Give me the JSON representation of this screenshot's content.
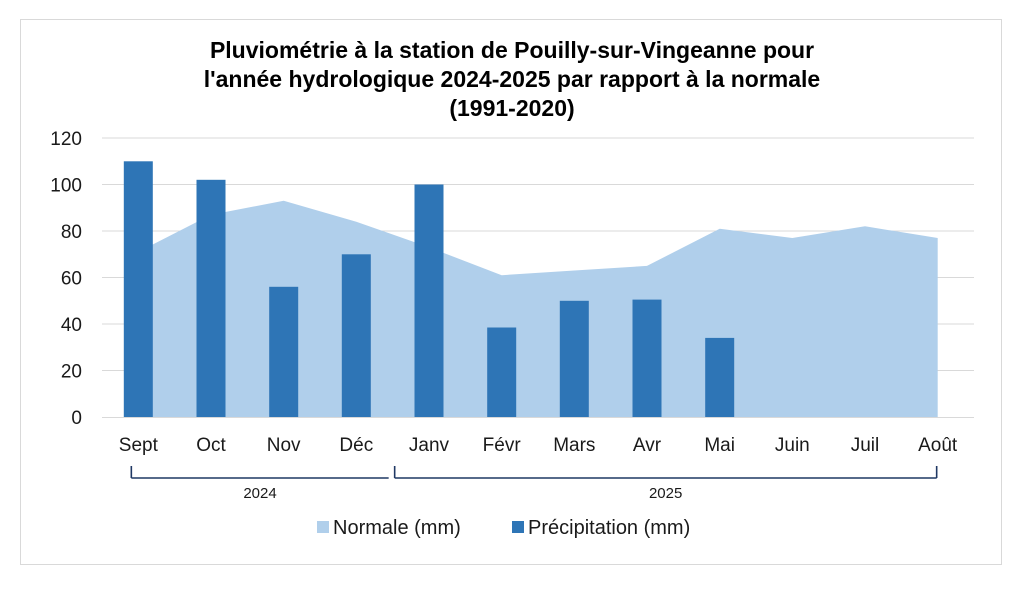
{
  "chart_data": {
    "type": "bar",
    "title_lines": [
      "Pluviométrie à la station de Pouilly-sur-Vingeanne pour",
      "l'année hydrologique 2024-2025 par rapport à la normale",
      "(1991-2020)"
    ],
    "categories": [
      "Sept",
      "Oct",
      "Nov",
      "Déc",
      "Janv",
      "Févr",
      "Mars",
      "Avr",
      "Mai",
      "Juin",
      "Juil",
      "Août"
    ],
    "category_groups": [
      {
        "label": "2024",
        "start": 0,
        "end": 3
      },
      {
        "label": "2025",
        "start": 4,
        "end": 11
      }
    ],
    "series": [
      {
        "name": "Normale (mm)",
        "type": "area",
        "color": "#b0cfeb",
        "values": [
          71,
          87,
          93,
          84,
          73,
          61,
          63,
          65,
          81,
          77,
          82,
          77
        ]
      },
      {
        "name": "Précipitation (mm)",
        "type": "bar",
        "color": "#2e75b6",
        "values": [
          110,
          102,
          56,
          70,
          100,
          38.5,
          50,
          50.5,
          34,
          null,
          null,
          null
        ]
      }
    ],
    "y_ticks": [
      0,
      20,
      40,
      60,
      80,
      100,
      120
    ],
    "ylim": [
      0,
      120
    ],
    "grid": true,
    "legend_position": "bottom"
  }
}
